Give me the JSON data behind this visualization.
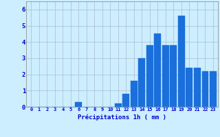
{
  "hours": [
    0,
    1,
    2,
    3,
    4,
    5,
    6,
    7,
    8,
    9,
    10,
    11,
    12,
    13,
    14,
    15,
    16,
    17,
    18,
    19,
    20,
    21,
    22,
    23
  ],
  "values": [
    0,
    0,
    0,
    0,
    0,
    0,
    0.3,
    0,
    0,
    0,
    0,
    0.2,
    0.8,
    1.6,
    3.0,
    3.8,
    4.5,
    3.8,
    3.8,
    5.6,
    2.4,
    2.4,
    2.2,
    2.2
  ],
  "bar_color": "#1a6fdb",
  "bar_edge_color": "#1a6fdb",
  "background_color": "#cceeff",
  "grid_color": "#aabbcc",
  "xlabel": "Précipitations 1h ( mm )",
  "xlabel_color": "#0000cc",
  "tick_color": "#0000cc",
  "ylim": [
    0,
    6.5
  ],
  "yticks": [
    0,
    1,
    2,
    3,
    4,
    5,
    6
  ],
  "spine_color": "#808080"
}
